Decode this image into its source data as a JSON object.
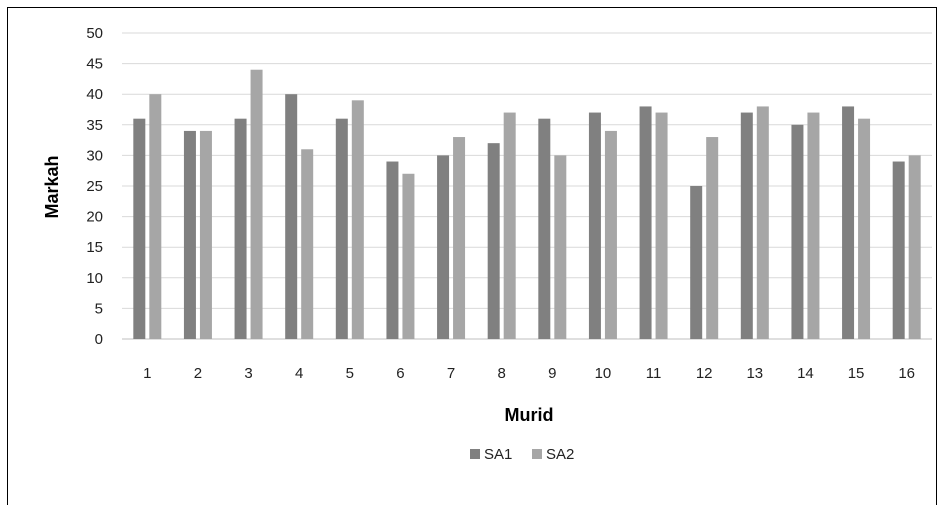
{
  "chart_data": {
    "type": "bar",
    "title": "",
    "xlabel": "Murid",
    "ylabel": "Markah",
    "categories": [
      "1",
      "2",
      "3",
      "4",
      "5",
      "6",
      "7",
      "8",
      "9",
      "10",
      "11",
      "12",
      "13",
      "14",
      "15",
      "16"
    ],
    "series": [
      {
        "name": "SA1",
        "color": "#808080",
        "values": [
          36,
          34,
          36,
          40,
          36,
          29,
          30,
          32,
          36,
          37,
          38,
          25,
          37,
          35,
          38,
          29
        ]
      },
      {
        "name": "SA2",
        "color": "#a6a6a6",
        "values": [
          40,
          34,
          44,
          31,
          39,
          27,
          33,
          37,
          30,
          34,
          37,
          33,
          38,
          37,
          36,
          30
        ]
      }
    ],
    "ylim": [
      0,
      50
    ],
    "yticks": [
      "0",
      "5",
      "10",
      "15",
      "20",
      "25",
      "30",
      "35",
      "40",
      "45",
      "50"
    ],
    "grid": true,
    "gridColor": "#d9d9d9",
    "legend": "bottom"
  }
}
